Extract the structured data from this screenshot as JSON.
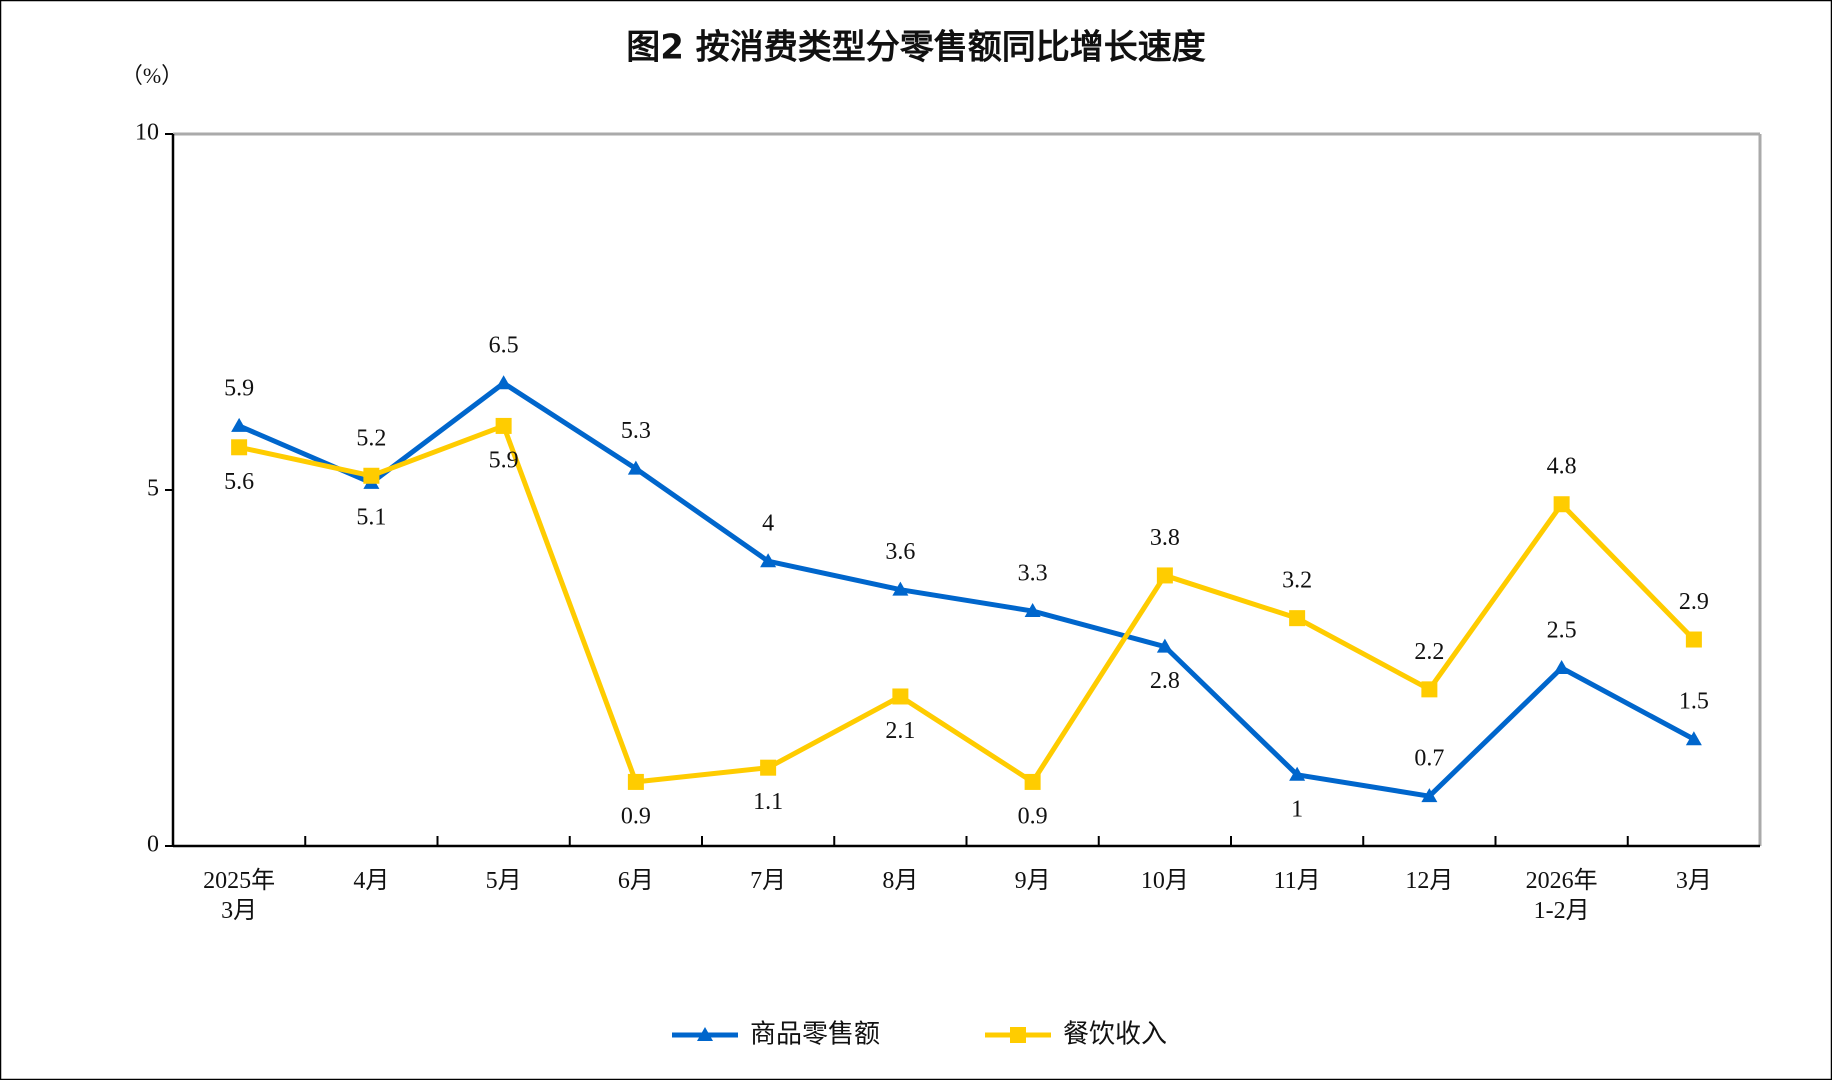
{
  "chart_data": {
    "type": "line",
    "title": "图2  按消费类型分零售额同比增长速度",
    "y_unit": "（%）",
    "categories": [
      "2025年\n3月",
      "4月",
      "5月",
      "6月",
      "7月",
      "8月",
      "9月",
      "10月",
      "11月",
      "12月",
      "2026年\n1-2月",
      "3月"
    ],
    "series": [
      {
        "name": "商品零售额",
        "color": "#0066cc",
        "marker": "triangle",
        "values": [
          5.9,
          5.1,
          6.5,
          5.3,
          4.0,
          3.6,
          3.3,
          2.8,
          1.0,
          0.7,
          2.5,
          1.5
        ]
      },
      {
        "name": "餐饮收入",
        "color": "#ffcc00",
        "marker": "square",
        "values": [
          5.6,
          5.2,
          5.9,
          0.9,
          1.1,
          2.1,
          0.9,
          3.8,
          3.2,
          2.2,
          4.8,
          2.9
        ]
      }
    ],
    "ylim": [
      0,
      10
    ],
    "yticks": [
      0,
      5,
      10
    ],
    "grid": false,
    "legend": "bottom"
  }
}
